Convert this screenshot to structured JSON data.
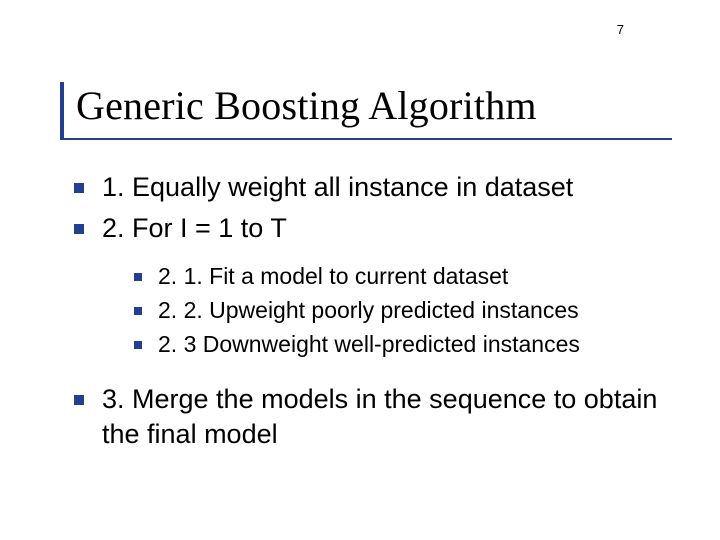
{
  "page_number": "7",
  "title": "Generic Boosting Algorithm",
  "accent_color": "#243e90",
  "background_color": "#ffffff",
  "text_color": "#000000",
  "title_font": "Times New Roman",
  "body_font": "Verdana",
  "title_fontsize": 40,
  "l1_fontsize": 27,
  "l2_fontsize": 23,
  "bullets": {
    "l1": [
      "1. Equally weight all instance in dataset",
      "2. For I = 1 to T"
    ],
    "l2": [
      "2. 1. Fit a model to current dataset",
      "2. 2. Upweight poorly predicted instances",
      "2. 3 Downweight well-predicted instances"
    ],
    "l1_after": [
      "3. Merge the models in the sequence to obtain the final model"
    ]
  }
}
